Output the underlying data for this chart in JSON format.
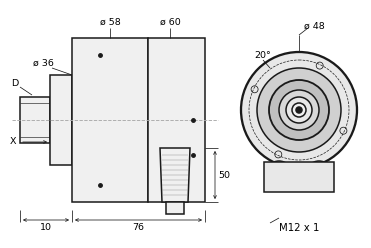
{
  "bg_color": "#ffffff",
  "line_color": "#1a1a1a",
  "dim_color": "#1a1a1a",
  "annotations": {
    "dia36": "ø 36",
    "dia58": "ø 58",
    "dia60": "ø 60",
    "dia48": "ø 48",
    "dim_D": "D",
    "dim_X": "X",
    "dim_10": "10",
    "dim_76": "76",
    "dim_50": "50",
    "dim_20deg": "20°",
    "dim_M12": "M12 x 1"
  }
}
